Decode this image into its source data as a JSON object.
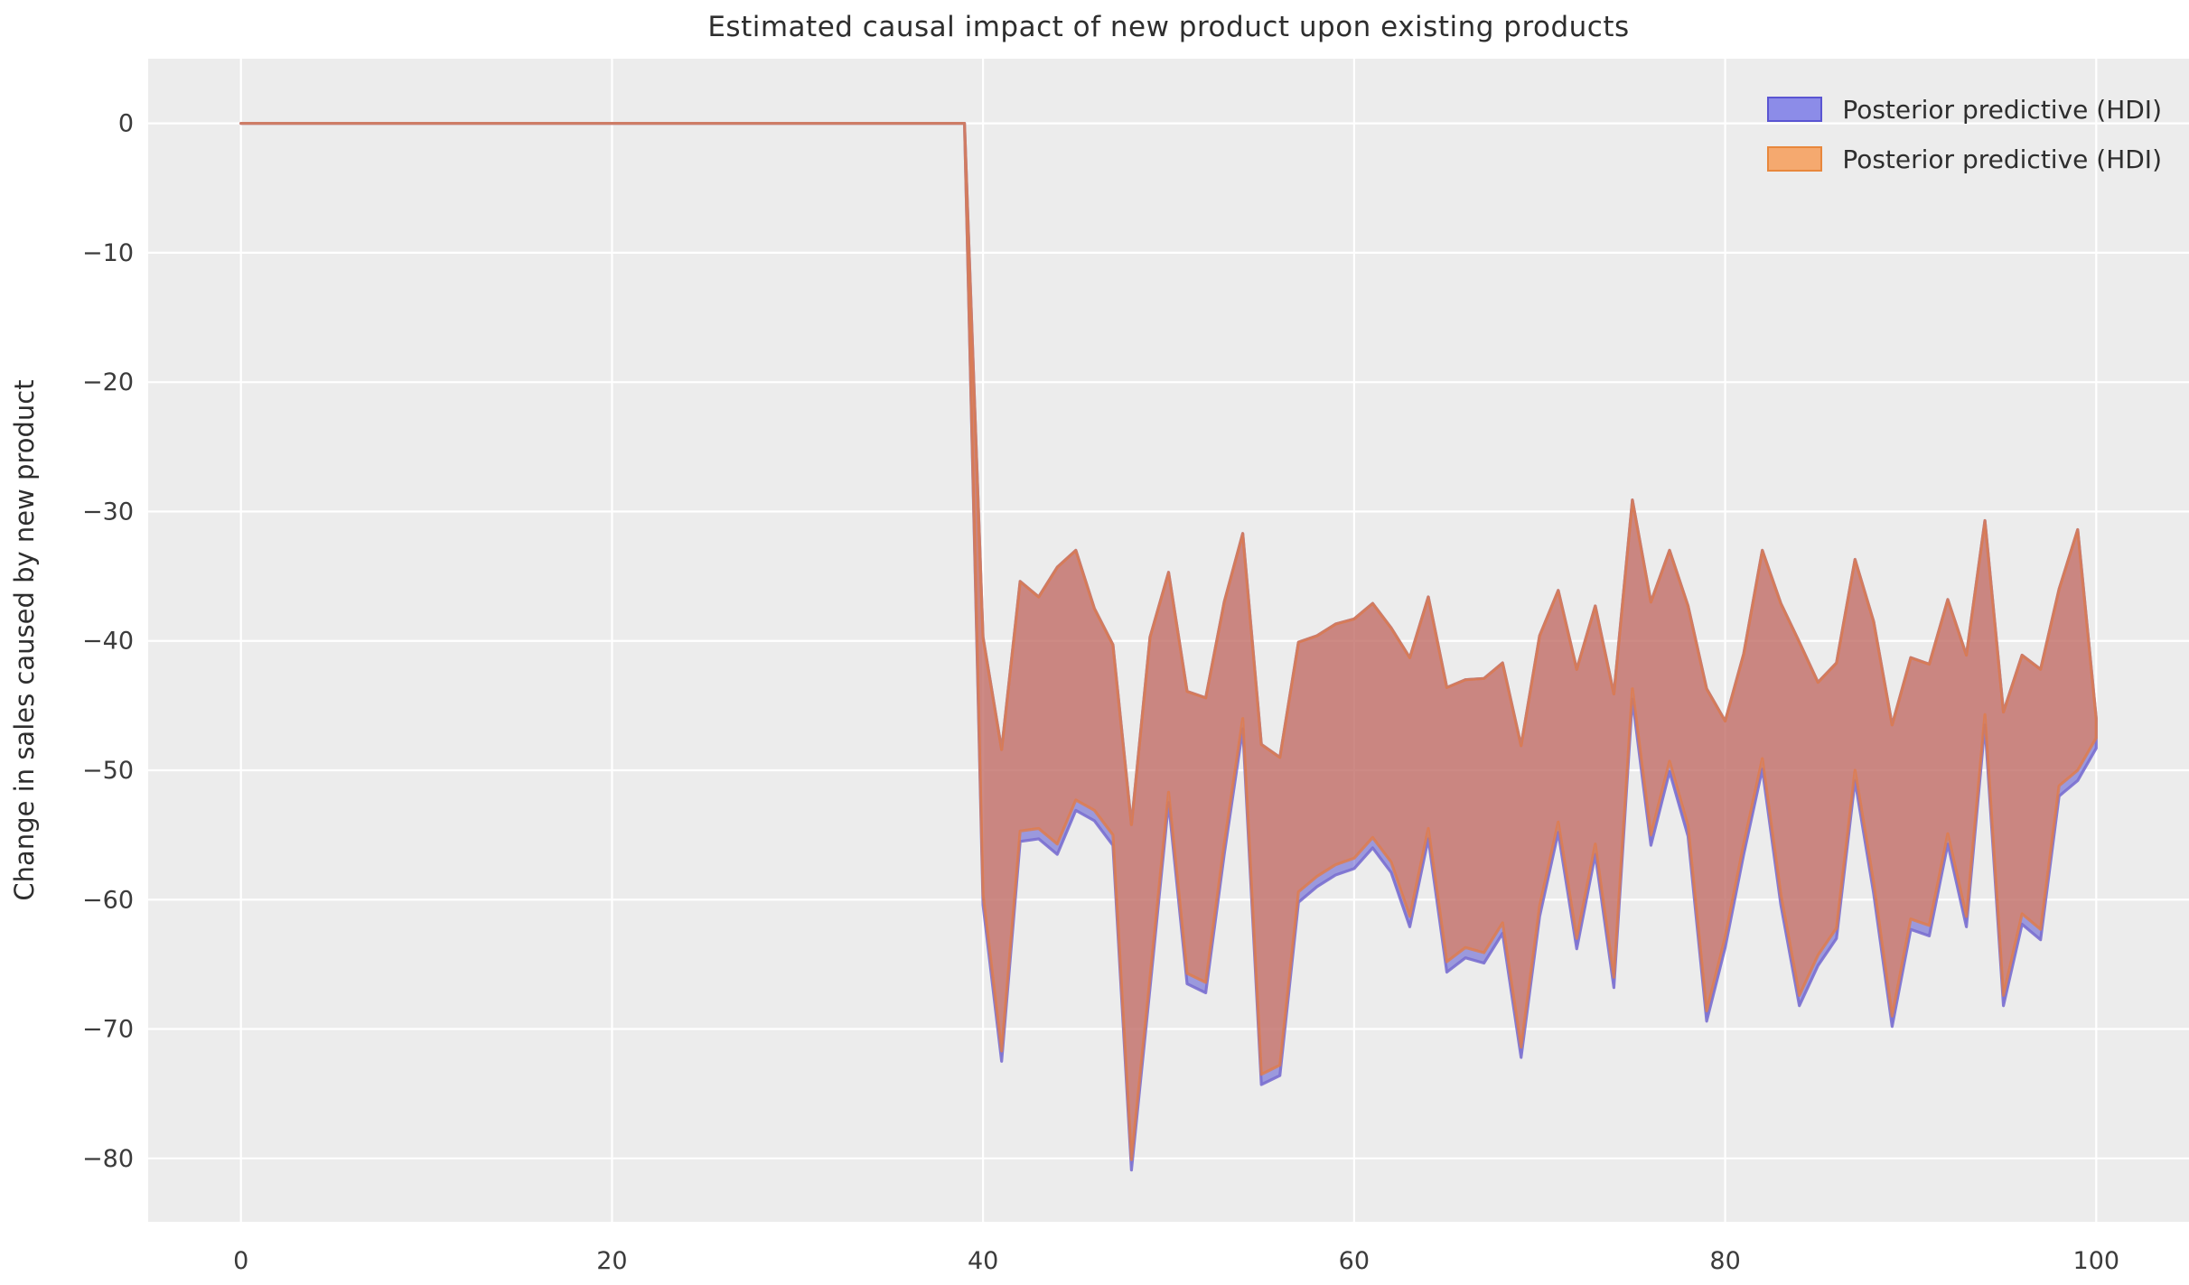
{
  "figure": {
    "title": "Estimated causal impact of new product upon existing products",
    "ylabel": "Change in sales caused by new product"
  },
  "legend": {
    "entries": [
      {
        "label": "Posterior predictive (HDI)",
        "fill": "#8c8ce8",
        "stroke": "#5a55d2"
      },
      {
        "label": "Posterior predictive (HDI)",
        "fill": "#f5a96f",
        "stroke": "#e8873c"
      }
    ]
  },
  "colors": {
    "axes_bg": "#ececec",
    "grid": "#ffffff",
    "tick_text": "#3b3b3b",
    "band_blue_fill": "rgba(90,85,210,0.55)",
    "band_blue_stroke": "rgba(122,111,208,0.9)",
    "band_orange_fill": "rgba(230,122,72,0.62)",
    "band_orange_stroke": "rgba(224,124,74,0.8)"
  },
  "chart_data": {
    "type": "area",
    "title": "Estimated causal impact of new product upon existing products",
    "xlabel": "",
    "ylabel": "Change in sales caused by new product",
    "xlim": [
      -5,
      105
    ],
    "ylim": [
      -84.9,
      5.0
    ],
    "xticks": [
      0,
      20,
      40,
      60,
      80,
      100
    ],
    "xtick_labels": [
      "0",
      "20",
      "40",
      "60",
      "80",
      "100"
    ],
    "yticks": [
      0,
      -10,
      -20,
      -30,
      -40,
      -50,
      -60,
      -70,
      -80
    ],
    "ytick_labels": [
      "0",
      "−10",
      "−20",
      "−30",
      "−40",
      "−50",
      "−60",
      "−70",
      "−80"
    ],
    "grid": true,
    "legend_position": "upper right",
    "pre_period": {
      "x_start": 0,
      "x_end": 39,
      "value": 0
    },
    "treatment_x": 40,
    "series": [
      {
        "name": "Posterior predictive (HDI)",
        "role": "blue-band",
        "lower_offset": -0.8
      },
      {
        "name": "Posterior predictive (HDI)",
        "role": "orange-band",
        "lower_offset": 0
      }
    ],
    "band": {
      "x0": 40,
      "upper": [
        -39.7,
        -48.4,
        -35.4,
        -36.6,
        -34.3,
        -33.0,
        -37.5,
        -40.3,
        -54.2,
        -39.7,
        -34.7,
        -43.9,
        -44.4,
        -37.0,
        -31.7,
        -48.0,
        -49.0,
        -40.1,
        -39.6,
        -38.7,
        -38.3,
        -37.1,
        -39.0,
        -41.3,
        -36.6,
        -43.6,
        -43.0,
        -42.9,
        -41.7,
        -48.1,
        -39.6,
        -36.1,
        -42.2,
        -37.3,
        -44.1,
        -29.1,
        -37.0,
        -33.0,
        -37.3,
        -43.7,
        -46.2,
        -41.0,
        -33.0,
        -37.1,
        -40.1,
        -43.2,
        -41.7,
        -33.7,
        -38.5,
        -46.5,
        -41.3,
        -41.8,
        -36.8,
        -41.1,
        -30.7,
        -45.5,
        -41.1,
        -42.2,
        -36.0,
        -31.4,
        -46.0
      ],
      "lower": [
        -59.6,
        -71.7,
        -54.7,
        -54.5,
        -55.7,
        -52.3,
        -53.1,
        -55.0,
        -80.1,
        -66.0,
        -51.7,
        -65.7,
        -66.4,
        -55.7,
        -46.0,
        -73.5,
        -72.8,
        -59.4,
        -58.2,
        -57.3,
        -56.8,
        -55.2,
        -57.1,
        -61.3,
        -54.5,
        -64.8,
        -63.7,
        -64.1,
        -61.8,
        -71.4,
        -60.5,
        -54.0,
        -63.0,
        -55.7,
        -66.0,
        -43.7,
        -55.0,
        -49.3,
        -54.3,
        -68.6,
        -62.9,
        -55.7,
        -49.1,
        -59.6,
        -67.4,
        -64.3,
        -62.2,
        -50.0,
        -58.7,
        -69.0,
        -61.5,
        -62.0,
        -54.9,
        -61.3,
        -45.7,
        -67.4,
        -61.1,
        -62.3,
        -51.2,
        -50.0,
        -47.5
      ]
    }
  }
}
